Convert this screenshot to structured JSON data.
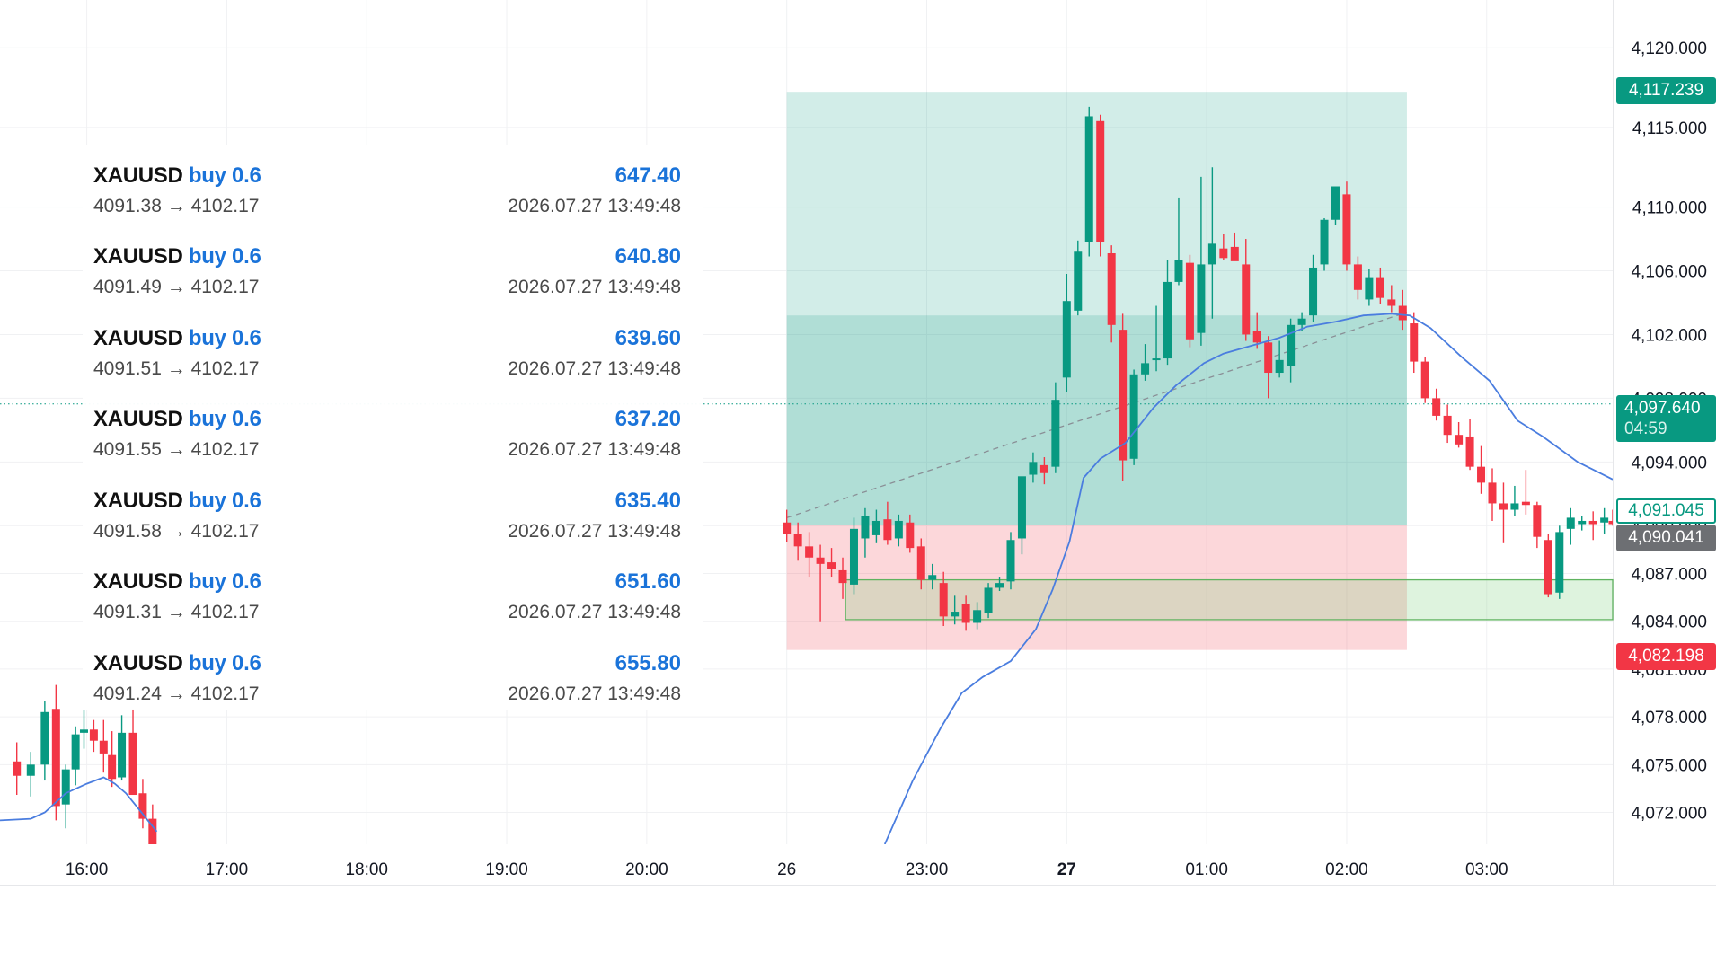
{
  "trades": [
    {
      "symbol": "XAUUSD",
      "side": "buy 0.6",
      "prices": "4091.38 → 4102.17",
      "profit": "647.40",
      "time": "2026.07.27 13:49:48"
    },
    {
      "symbol": "XAUUSD",
      "side": "buy 0.6",
      "prices": "4091.49 → 4102.17",
      "profit": "640.80",
      "time": "2026.07.27 13:49:48"
    },
    {
      "symbol": "XAUUSD",
      "side": "buy 0.6",
      "prices": "4091.51 → 4102.17",
      "profit": "639.60",
      "time": "2026.07.27 13:49:48"
    },
    {
      "symbol": "XAUUSD",
      "side": "buy 0.6",
      "prices": "4091.55 → 4102.17",
      "profit": "637.20",
      "time": "2026.07.27 13:49:48"
    },
    {
      "symbol": "XAUUSD",
      "side": "buy 0.6",
      "prices": "4091.58 → 4102.17",
      "profit": "635.40",
      "time": "2026.07.27 13:49:48"
    },
    {
      "symbol": "XAUUSD",
      "side": "buy 0.6",
      "prices": "4091.31 → 4102.17",
      "profit": "651.60",
      "time": "2026.07.27 13:49:48"
    },
    {
      "symbol": "XAUUSD",
      "side": "buy 0.6",
      "prices": "4091.24 → 4102.17",
      "profit": "655.80",
      "time": "2026.07.27 13:49:48"
    }
  ],
  "badges": {
    "take_profit": "4,117.239",
    "current_price": "4,097.640",
    "countdown": "04:59",
    "bid_outline": "4,091.045",
    "entry_gray": "4,090.041",
    "stop_loss": "4,082.198"
  },
  "colors": {
    "up": "#089981",
    "down": "#f23645",
    "ma_line": "#4a7ddf",
    "profit_zone": "#089981",
    "loss_zone": "#f23645",
    "link_blue": "#1a73d9"
  },
  "chart_data": {
    "type": "candlestick",
    "y_ticks": [
      "4,120.000",
      "4,115.000",
      "4,110.000",
      "4,106.000",
      "4,102.000",
      "4,098.000",
      "4,094.000",
      "4,090.000",
      "4,087.000",
      "4,084.000",
      "4,081.000",
      "4,078.000",
      "4,075.000",
      "4,072.000"
    ],
    "y_tick_values": [
      4120,
      4115,
      4110,
      4106,
      4102,
      4098,
      4094,
      4090,
      4087,
      4084,
      4081,
      4078,
      4075,
      4072
    ],
    "x_ticks": [
      "16:00",
      "17:00",
      "18:00",
      "19:00",
      "20:00",
      "26",
      "23:00",
      "27",
      "01:00",
      "02:00",
      "03:00"
    ],
    "x_tick_times": [
      -6.5,
      -5.5,
      -4.5,
      -3.5,
      -2.5,
      -1.5,
      -0.5,
      0.5,
      1.5,
      2.5,
      3.5
    ],
    "bold_ticks": [
      "27"
    ],
    "ylim": [
      4070,
      4123
    ],
    "xlim": [
      -7.12,
      4.4
    ],
    "position": {
      "tp": 4117.239,
      "entry": 4090.041,
      "sl": 4082.198,
      "entry_split": 4103.2,
      "start_time": -1.5,
      "end_time": 2.93
    },
    "green_zone": {
      "top": 4086.6,
      "bottom": 4084.1,
      "start_time": -1.08
    },
    "current_line": 4097.64,
    "ohlc_early": [
      [
        -7.0,
        4075.2,
        4076.4,
        4073.1,
        4074.3
      ],
      [
        -6.9,
        4074.3,
        4075.8,
        4073.0,
        4075.0
      ],
      [
        -6.8,
        4075.0,
        4079.0,
        4074.0,
        4078.3
      ],
      [
        -6.72,
        4078.5,
        4080.0,
        4071.5,
        4072.4
      ],
      [
        -6.65,
        4072.5,
        4075.0,
        4071.0,
        4074.7
      ],
      [
        -6.58,
        4074.7,
        4077.4,
        4073.7,
        4076.9
      ],
      [
        -6.52,
        4077.0,
        4078.4,
        4076.0,
        4077.2
      ],
      [
        -6.45,
        4077.2,
        4077.8,
        4075.8,
        4076.5
      ],
      [
        -6.38,
        4076.5,
        4077.8,
        4074.5,
        4075.7
      ],
      [
        -6.32,
        4075.6,
        4077.1,
        4073.6,
        4074.1
      ],
      [
        -6.25,
        4074.2,
        4078.1,
        4074.0,
        4077.0
      ],
      [
        -6.17,
        4077.0,
        4078.5,
        4073.6,
        4073.1
      ],
      [
        -6.1,
        4073.2,
        4074.1,
        4071.0,
        4071.6
      ],
      [
        -6.03,
        4071.6,
        4072.5,
        4069.0,
        4070.0
      ]
    ],
    "ohlc": [
      [
        -1.5,
        4090.2,
        4091.0,
        4089.0,
        4089.5
      ],
      [
        -1.42,
        4089.5,
        4090.2,
        4087.8,
        4088.7
      ],
      [
        -1.34,
        4088.7,
        4089.6,
        4086.8,
        4088.0
      ],
      [
        -1.26,
        4088.0,
        4088.8,
        4084.0,
        4087.6
      ],
      [
        -1.18,
        4087.7,
        4088.6,
        4086.8,
        4087.3
      ],
      [
        -1.1,
        4087.2,
        4088.0,
        4085.4,
        4086.4
      ],
      [
        -1.02,
        4086.3,
        4090.5,
        4085.7,
        4089.8
      ],
      [
        -0.94,
        4089.2,
        4091.1,
        4088.0,
        4090.6
      ],
      [
        -0.86,
        4089.4,
        4091.0,
        4088.9,
        4090.3
      ],
      [
        -0.78,
        4090.4,
        4091.5,
        4088.8,
        4089.1
      ],
      [
        -0.7,
        4089.2,
        4090.7,
        4088.7,
        4090.3
      ],
      [
        -0.62,
        4090.2,
        4090.7,
        4088.3,
        4088.6
      ],
      [
        -0.54,
        4088.7,
        4089.2,
        4086.0,
        4086.6
      ],
      [
        -0.46,
        4086.6,
        4087.6,
        4086.0,
        4086.9
      ],
      [
        -0.38,
        4086.4,
        4087.1,
        4083.7,
        4084.3
      ],
      [
        -0.3,
        4084.3,
        4085.6,
        4083.8,
        4084.6
      ],
      [
        -0.22,
        4085.1,
        4085.6,
        4083.4,
        4083.9
      ],
      [
        -0.14,
        4083.9,
        4085.2,
        4083.5,
        4084.7
      ],
      [
        -0.06,
        4084.5,
        4086.4,
        4084.2,
        4086.1
      ],
      [
        0.02,
        4086.1,
        4086.8,
        4085.9,
        4086.4
      ],
      [
        0.1,
        4086.5,
        4089.6,
        4086.0,
        4089.1
      ],
      [
        0.18,
        4089.2,
        4092.6,
        4088.2,
        4093.1
      ],
      [
        0.26,
        4093.2,
        4094.6,
        4092.7,
        4094.0
      ],
      [
        0.34,
        4093.8,
        4094.3,
        4092.6,
        4093.3
      ],
      [
        0.42,
        4093.7,
        4099.0,
        4093.3,
        4097.9
      ],
      [
        0.5,
        4099.3,
        4105.8,
        4098.4,
        4104.1
      ],
      [
        0.58,
        4103.5,
        4107.9,
        4103.2,
        4107.2
      ],
      [
        0.66,
        4107.8,
        4116.3,
        4106.9,
        4115.7
      ],
      [
        0.74,
        4115.4,
        4115.8,
        4106.9,
        4107.8
      ],
      [
        0.82,
        4107.1,
        4107.6,
        4101.5,
        4102.6
      ],
      [
        0.9,
        4102.3,
        4103.3,
        4092.8,
        4094.1
      ],
      [
        0.98,
        4094.2,
        4099.8,
        4093.8,
        4099.5
      ],
      [
        1.06,
        4099.5,
        4101.4,
        4099.1,
        4100.2
      ],
      [
        1.14,
        4100.4,
        4103.8,
        4099.7,
        4100.5
      ],
      [
        1.22,
        4100.5,
        4106.7,
        4100.1,
        4105.3
      ],
      [
        1.3,
        4105.3,
        4110.6,
        4105.1,
        4106.7
      ],
      [
        1.38,
        4106.5,
        4107.0,
        4101.2,
        4101.7
      ],
      [
        1.46,
        4102.1,
        4111.9,
        4101.3,
        4106.4
      ],
      [
        1.54,
        4106.4,
        4112.5,
        4103.0,
        4107.7
      ],
      [
        1.62,
        4107.4,
        4108.3,
        4106.7,
        4106.8
      ],
      [
        1.7,
        4107.5,
        4108.4,
        4107.0,
        4106.6
      ],
      [
        1.78,
        4106.4,
        4108.0,
        4101.6,
        4102.0
      ],
      [
        1.86,
        4102.2,
        4103.4,
        4101.1,
        4101.5
      ],
      [
        1.94,
        4101.5,
        4101.9,
        4098.0,
        4099.6
      ],
      [
        2.02,
        4099.6,
        4101.6,
        4099.3,
        4100.4
      ],
      [
        2.1,
        4100.0,
        4103.0,
        4099.0,
        4102.6
      ],
      [
        2.18,
        4102.6,
        4103.4,
        4102.2,
        4103.0
      ],
      [
        2.26,
        4103.2,
        4107.0,
        4102.8,
        4106.2
      ],
      [
        2.34,
        4106.4,
        4109.3,
        4106.0,
        4109.2
      ],
      [
        2.42,
        4109.2,
        4111.2,
        4108.9,
        4111.3
      ],
      [
        2.5,
        4110.8,
        4111.6,
        4106.0,
        4106.4
      ],
      [
        2.58,
        4106.4,
        4106.9,
        4104.2,
        4104.8
      ],
      [
        2.66,
        4104.2,
        4106.1,
        4103.8,
        4105.6
      ],
      [
        2.74,
        4105.6,
        4106.2,
        4103.9,
        4104.3
      ],
      [
        2.82,
        4104.2,
        4105.1,
        4103.4,
        4103.8
      ],
      [
        2.9,
        4103.8,
        4104.8,
        4102.3,
        4102.9
      ],
      [
        2.98,
        4102.7,
        4103.4,
        4099.6,
        4100.3
      ],
      [
        3.06,
        4100.3,
        4100.6,
        4097.7,
        4098.0
      ],
      [
        3.14,
        4098.0,
        4098.6,
        4096.6,
        4096.9
      ],
      [
        3.22,
        4096.9,
        4097.6,
        4095.2,
        4095.7
      ],
      [
        3.3,
        4095.7,
        4096.5,
        4094.9,
        4095.1
      ],
      [
        3.38,
        4095.6,
        4096.7,
        4093.5,
        4093.7
      ],
      [
        3.46,
        4093.7,
        4095.0,
        4092.0,
        4092.7
      ],
      [
        3.54,
        4092.7,
        4093.6,
        4090.3,
        4091.4
      ],
      [
        3.62,
        4091.4,
        4092.7,
        4088.9,
        4091.0
      ],
      [
        3.7,
        4091.0,
        4092.5,
        4090.6,
        4091.4
      ],
      [
        3.78,
        4091.5,
        4093.5,
        4090.7,
        4091.3
      ],
      [
        3.86,
        4091.3,
        4091.5,
        4088.6,
        4089.3
      ],
      [
        3.94,
        4089.1,
        4089.5,
        4085.5,
        4085.7
      ],
      [
        4.02,
        4085.8,
        4090.0,
        4085.4,
        4089.6
      ],
      [
        4.1,
        4089.8,
        4091.1,
        4088.8,
        4090.5
      ],
      [
        4.18,
        4090.1,
        4090.6,
        4089.7,
        4090.3
      ],
      [
        4.26,
        4090.3,
        4090.9,
        4089.1,
        4090.1
      ],
      [
        4.34,
        4090.2,
        4091.1,
        4089.5,
        4090.5
      ],
      [
        4.4,
        4090.3,
        4091.0,
        4090.0,
        4090.1
      ]
    ],
    "ma_early": [
      [
        -7.12,
        4071.5
      ],
      [
        -6.9,
        4071.6
      ],
      [
        -6.8,
        4072.0
      ],
      [
        -6.65,
        4073.2
      ],
      [
        -6.5,
        4073.8
      ],
      [
        -6.38,
        4074.2
      ],
      [
        -6.3,
        4073.8
      ],
      [
        -6.22,
        4073.2
      ],
      [
        -6.1,
        4071.9
      ],
      [
        -6.0,
        4070.8
      ]
    ],
    "ma": [
      [
        -0.8,
        4070.0
      ],
      [
        -0.6,
        4074.0
      ],
      [
        -0.4,
        4077.3
      ],
      [
        -0.25,
        4079.5
      ],
      [
        -0.1,
        4080.5
      ],
      [
        0.1,
        4081.5
      ],
      [
        0.28,
        4083.5
      ],
      [
        0.4,
        4086.0
      ],
      [
        0.52,
        4089.0
      ],
      [
        0.62,
        4093.0
      ],
      [
        0.74,
        4094.2
      ],
      [
        0.92,
        4095.2
      ],
      [
        1.12,
        4097.4
      ],
      [
        1.28,
        4098.8
      ],
      [
        1.48,
        4100.2
      ],
      [
        1.62,
        4100.8
      ],
      [
        1.82,
        4101.3
      ],
      [
        2.02,
        4101.8
      ],
      [
        2.22,
        4102.5
      ],
      [
        2.42,
        4102.8
      ],
      [
        2.62,
        4103.2
      ],
      [
        2.82,
        4103.3
      ],
      [
        2.95,
        4103.2
      ],
      [
        3.1,
        4102.4
      ],
      [
        3.32,
        4100.6
      ],
      [
        3.52,
        4099.1
      ],
      [
        3.72,
        4096.6
      ],
      [
        3.9,
        4095.6
      ],
      [
        4.15,
        4094.0
      ],
      [
        4.4,
        4092.9
      ]
    ],
    "trend_line": [
      [
        -1.5,
        4090.5
      ],
      [
        2.93,
        4103.4
      ]
    ]
  }
}
